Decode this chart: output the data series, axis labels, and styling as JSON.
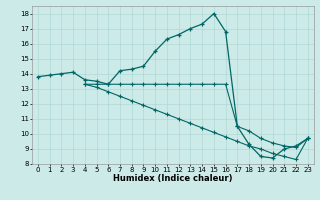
{
  "title": "",
  "xlabel": "Humidex (Indice chaleur)",
  "bg_color": "#cceae7",
  "line_color": "#006666",
  "xlim": [
    -0.5,
    23.5
  ],
  "ylim": [
    8,
    18.5
  ],
  "xticks": [
    0,
    1,
    2,
    3,
    4,
    5,
    6,
    7,
    8,
    9,
    10,
    11,
    12,
    13,
    14,
    15,
    16,
    17,
    18,
    19,
    20,
    21,
    22,
    23
  ],
  "yticks": [
    8,
    9,
    10,
    11,
    12,
    13,
    14,
    15,
    16,
    17,
    18
  ],
  "line1_x": [
    0,
    1,
    2,
    3,
    4,
    5,
    6,
    7,
    8,
    9,
    10,
    11,
    12,
    13,
    14,
    15,
    16,
    17,
    18,
    19,
    20,
    21,
    22,
    23
  ],
  "line1_y": [
    13.8,
    13.9,
    14.0,
    14.1,
    13.6,
    13.5,
    13.3,
    14.2,
    14.3,
    14.5,
    15.5,
    16.3,
    16.6,
    17.0,
    17.3,
    18.0,
    16.8,
    10.5,
    9.3,
    8.5,
    8.4,
    9.0,
    9.2,
    9.7
  ],
  "line2_x": [
    4,
    5,
    6,
    7,
    8,
    9,
    10,
    11,
    12,
    13,
    14,
    15,
    16,
    17,
    18,
    19,
    20,
    21,
    22,
    23
  ],
  "line2_y": [
    13.3,
    13.3,
    13.3,
    13.3,
    13.3,
    13.3,
    13.3,
    13.3,
    13.3,
    13.3,
    13.3,
    13.3,
    13.3,
    10.5,
    10.2,
    9.7,
    9.4,
    9.2,
    9.1,
    9.7
  ],
  "line3_x": [
    4,
    5,
    6,
    7,
    8,
    9,
    10,
    11,
    12,
    13,
    14,
    15,
    16,
    17,
    18,
    19,
    20,
    21,
    22,
    23
  ],
  "line3_y": [
    13.3,
    13.1,
    12.8,
    12.5,
    12.2,
    11.9,
    11.6,
    11.3,
    11.0,
    10.7,
    10.4,
    10.1,
    9.8,
    9.5,
    9.2,
    9.0,
    8.7,
    8.5,
    8.3,
    9.7
  ]
}
